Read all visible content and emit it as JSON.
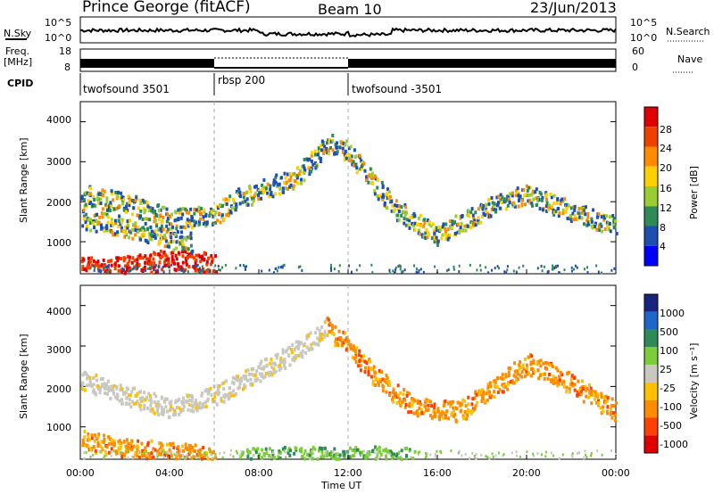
{
  "header": {
    "station": "Prince George (fitACF)",
    "beam": "Beam 10",
    "date": "23/Jun/2013"
  },
  "noise_panel": {
    "left_label": "N.Sky",
    "left_ticks": [
      "10^5",
      "10^0"
    ],
    "right_ticks": [
      "10^5",
      "10^0"
    ],
    "right_label": "N.Search",
    "series": [
      {
        "name": "N.Sky",
        "style": "solid"
      },
      {
        "name": "N.Search",
        "style": "dotted"
      }
    ]
  },
  "freq_panel": {
    "label_line1": "Freq.",
    "label_line2": "[MHz]",
    "left_ticks": [
      "18",
      "8"
    ],
    "right_ticks": [
      "60",
      "0"
    ],
    "right_label": "Nave"
  },
  "cpid": {
    "label": "CPID",
    "segments": [
      {
        "name": "twofsound 3501",
        "start_hour": 0,
        "end_hour": 6
      },
      {
        "name": "rbsp 200",
        "start_hour": 6,
        "end_hour": 12
      },
      {
        "name": "twofsound -3501",
        "start_hour": 12,
        "end_hour": 24
      }
    ]
  },
  "power_panel": {
    "ylabel": "Slant Range [km]",
    "yticks": [
      "4000",
      "3000",
      "2000",
      "1000"
    ],
    "colorbar_label": "Power [dB]",
    "colorbar_ticks": [
      "28",
      "24",
      "20",
      "16",
      "12",
      "8",
      "4"
    ],
    "colorbar_colors": [
      "#e00000",
      "#f04000",
      "#ff8c00",
      "#ffd000",
      "#9acd32",
      "#2e8b57",
      "#1e4fb0",
      "#0000ff"
    ]
  },
  "velocity_panel": {
    "ylabel": "Slant Range [km]",
    "yticks": [
      "4000",
      "3000",
      "2000",
      "1000"
    ],
    "colorbar_label": "Velocity [m s⁻¹]",
    "colorbar_ticks": [
      "1000",
      "500",
      "100",
      "25",
      "-25",
      "-100",
      "-500",
      "-1000"
    ],
    "colorbar_colors": [
      "#1a237e",
      "#1e66c8",
      "#2e8b57",
      "#7ccd3a",
      "#c8c8c0",
      "#ffc000",
      "#ff8c00",
      "#ff4000",
      "#e00000"
    ]
  },
  "xaxis": {
    "label": "Time UT",
    "ticks": [
      "00:00",
      "04:00",
      "08:00",
      "12:00",
      "16:00",
      "20:00",
      "00:00"
    ]
  },
  "chart_data": {
    "type": "heatmap",
    "x_unit": "hours UT",
    "xlim": [
      0,
      24
    ],
    "ylim": [
      200,
      4500
    ],
    "power_bands": [
      {
        "points": [
          [
            0,
            2200
          ],
          [
            2,
            2000
          ],
          [
            4,
            1600
          ],
          [
            6,
            1700
          ],
          [
            7,
            2100
          ],
          [
            8,
            2300
          ],
          [
            9.5,
            2600
          ],
          [
            10.5,
            3100
          ],
          [
            11,
            3500
          ]
        ],
        "value": 16
      },
      {
        "points": [
          [
            11,
            3500
          ],
          [
            12,
            3300
          ],
          [
            13,
            2600
          ],
          [
            14,
            1900
          ],
          [
            15,
            1500
          ],
          [
            16,
            1200
          ],
          [
            17,
            1500
          ],
          [
            18,
            1800
          ],
          [
            19,
            2100
          ],
          [
            20,
            2200
          ],
          [
            21,
            2000
          ],
          [
            22,
            1800
          ],
          [
            23,
            1600
          ],
          [
            24,
            1400
          ]
        ],
        "value": 16
      },
      {
        "points": [
          [
            0,
            400
          ],
          [
            1,
            380
          ],
          [
            2,
            420
          ],
          [
            3,
            500
          ],
          [
            4,
            600
          ],
          [
            5,
            550
          ],
          [
            6,
            500
          ]
        ],
        "value": 28
      },
      {
        "points": [
          [
            0,
            1600
          ],
          [
            2,
            1400
          ],
          [
            4,
            1100
          ],
          [
            5,
            1000
          ]
        ],
        "value": 20
      }
    ],
    "velocity_bands": [
      {
        "points": [
          [
            0,
            2200
          ],
          [
            2,
            1800
          ],
          [
            4,
            1500
          ],
          [
            6,
            1800
          ],
          [
            8,
            2400
          ],
          [
            10,
            3000
          ],
          [
            11,
            3500
          ]
        ],
        "value": 0
      },
      {
        "points": [
          [
            11,
            3500
          ],
          [
            12,
            3000
          ],
          [
            13,
            2400
          ],
          [
            14,
            1900
          ],
          [
            15,
            1500
          ],
          [
            17,
            1400
          ],
          [
            19,
            2200
          ],
          [
            20,
            2600
          ],
          [
            22,
            2100
          ],
          [
            24,
            1400
          ]
        ],
        "value": -100
      },
      {
        "points": [
          [
            0,
            700
          ],
          [
            2,
            500
          ],
          [
            4,
            400
          ],
          [
            6,
            300
          ]
        ],
        "value": -100
      },
      {
        "points": [
          [
            7,
            250
          ],
          [
            9,
            280
          ],
          [
            11,
            300
          ],
          [
            13,
            300
          ],
          [
            15,
            250
          ]
        ],
        "value": 100
      }
    ]
  }
}
